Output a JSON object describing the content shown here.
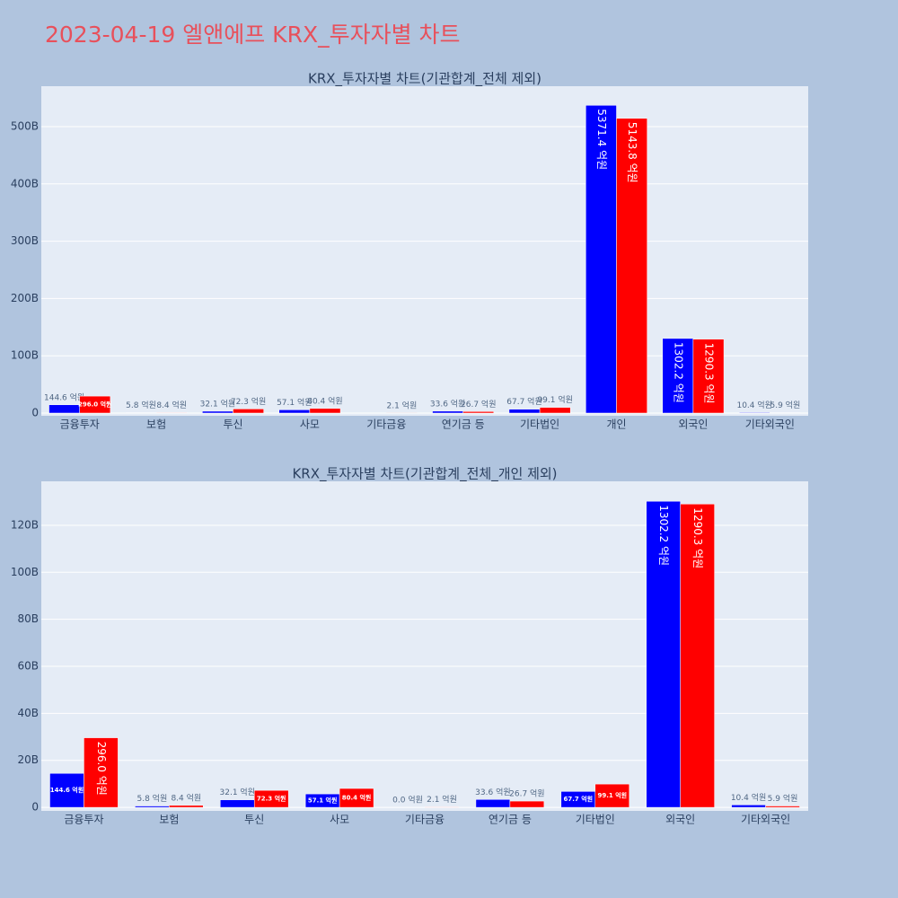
{
  "title": "2023-04-19 엘앤에프 KRX_투자자별 차트",
  "chart_data": [
    {
      "type": "bar",
      "title": "KRX_투자자별 차트(기관합계_전체 제외)",
      "categories": [
        "금융투자",
        "보험",
        "투신",
        "사모",
        "기타금융",
        "연기금 등",
        "기타법인",
        "개인",
        "외국인",
        "기타외국인"
      ],
      "series": [
        {
          "color": "#0000ff",
          "values": [
            14.46,
            0.58,
            3.21,
            5.71,
            0,
            3.36,
            6.77,
            537.14,
            130.22,
            1.04
          ],
          "value_labels": [
            "144.6 억원",
            "5.8 억원",
            "32.1 억원",
            "57.1 억원",
            null,
            "33.6 억원",
            "67.7 억원",
            "5371.4 억원",
            "1302.2 억원",
            "10.4 억원"
          ]
        },
        {
          "color": "#ff0000",
          "values": [
            29.6,
            0.84,
            7.23,
            8.04,
            0.21,
            2.67,
            9.91,
            514.38,
            129.03,
            0.59
          ],
          "value_labels": [
            "296.0 억원",
            "8.4 억원",
            "72.3 억원",
            "80.4 억원",
            "2.1 억원",
            "26.7 억원",
            "99.1 억원",
            "5143.8 억원",
            "1290.3 억원",
            "5.9 억원"
          ]
        }
      ],
      "ylim": [
        -4.7,
        570.5
      ],
      "yticks": [
        0,
        {
          "value": 100,
          "label": "100B"
        },
        {
          "value": 200,
          "label": "200B"
        },
        {
          "value": 300,
          "label": "300B"
        },
        {
          "value": 400,
          "label": "400B"
        },
        {
          "value": 500,
          "label": "500B"
        }
      ],
      "grid": true
    },
    {
      "type": "bar",
      "title": "KRX_투자자별 차트(기관합계_전체_개인 제외)",
      "categories": [
        "금융투자",
        "보험",
        "투신",
        "사모",
        "기타금융",
        "연기금 등",
        "기타법인",
        "외국인",
        "기타외국인"
      ],
      "series": [
        {
          "color": "#0000ff",
          "values": [
            14.46,
            0.58,
            3.21,
            5.71,
            0,
            3.36,
            6.77,
            130.22,
            1.04
          ],
          "value_labels": [
            "144.6 억원",
            "5.8 억원",
            "32.1 억원",
            "57.1 억원",
            "0.0 억원",
            "33.6 억원",
            "67.7 억원",
            "1302.2 억원",
            "10.4 억원"
          ]
        },
        {
          "color": "#ff0000",
          "values": [
            29.6,
            0.84,
            7.23,
            8.04,
            0.21,
            2.67,
            9.91,
            129.03,
            0.59
          ],
          "value_labels": [
            "296.0 억원",
            "8.4 억원",
            "72.3 억원",
            "80.4 억원",
            "2.1 억원",
            "26.7 억원",
            "99.1 억원",
            "1290.3 억원",
            "5.9 억원"
          ]
        }
      ],
      "ylim": [
        -1.5,
        138.7
      ],
      "yticks": [
        0,
        {
          "value": 20,
          "label": "20B"
        },
        {
          "value": 40,
          "label": "40B"
        },
        {
          "value": 60,
          "label": "60B"
        },
        {
          "value": 80,
          "label": "80B"
        },
        {
          "value": 100,
          "label": "100B"
        },
        {
          "value": 120,
          "label": "120B"
        }
      ],
      "grid": true
    }
  ]
}
